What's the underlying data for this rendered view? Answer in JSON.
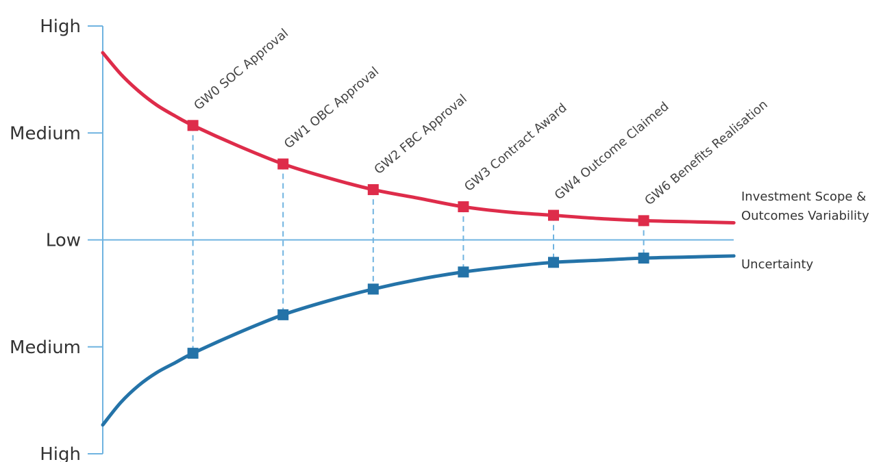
{
  "colors": {
    "axis": "#6fb3e0",
    "red_series": "#de2c4a",
    "blue_series": "#2473a8",
    "connector": "#6fb3e0",
    "text": "#333333"
  },
  "chart_data": {
    "type": "line",
    "title": "",
    "y_tick_labels": [
      "High",
      "Medium",
      "Low",
      "Medium",
      "High"
    ],
    "y_tick_values": [
      2,
      1,
      0,
      -1,
      -2
    ],
    "ylim": [
      -2,
      2
    ],
    "xlim": [
      0,
      7.1
    ],
    "categories": [
      "GW0 SOC Approval",
      "GW1 OBC Approval",
      "GW2 FBC Approval",
      "GW3 Contract Award",
      "GW4 Outcome Claimed",
      "GW6 Benefits Realisation"
    ],
    "gate_x": [
      1,
      2,
      3,
      4,
      5,
      6
    ],
    "series": [
      {
        "name": "Investment Scope & Outcomes Variability",
        "label_lines": [
          "Investment Scope &",
          "Outcomes Variability"
        ],
        "color": "#de2c4a",
        "curve_x": [
          0,
          0.2,
          0.4,
          0.6,
          0.8,
          1,
          1.5,
          2,
          2.5,
          3,
          3.5,
          4,
          4.5,
          5,
          5.5,
          6,
          6.5,
          7
        ],
        "curve_y": [
          1.75,
          1.55,
          1.39,
          1.26,
          1.16,
          1.07,
          0.88,
          0.71,
          0.58,
          0.47,
          0.39,
          0.31,
          0.26,
          0.23,
          0.2,
          0.18,
          0.17,
          0.16
        ],
        "values": [
          1.07,
          0.71,
          0.47,
          0.31,
          0.23,
          0.18
        ]
      },
      {
        "name": "Uncertainty",
        "label_lines": [
          "Uncertainty"
        ],
        "color": "#2473a8",
        "curve_x": [
          0,
          0.2,
          0.4,
          0.6,
          0.8,
          1,
          1.5,
          2,
          2.5,
          3,
          3.5,
          4,
          4.5,
          5,
          5.5,
          6,
          6.5,
          7
        ],
        "curve_y": [
          -1.73,
          -1.52,
          -1.36,
          -1.24,
          -1.15,
          -1.06,
          -0.87,
          -0.7,
          -0.57,
          -0.46,
          -0.37,
          -0.3,
          -0.25,
          -0.21,
          -0.19,
          -0.17,
          -0.16,
          -0.15
        ],
        "values": [
          -1.06,
          -0.7,
          -0.46,
          -0.3,
          -0.21,
          -0.17
        ]
      }
    ],
    "grid": false,
    "legend": "right"
  }
}
